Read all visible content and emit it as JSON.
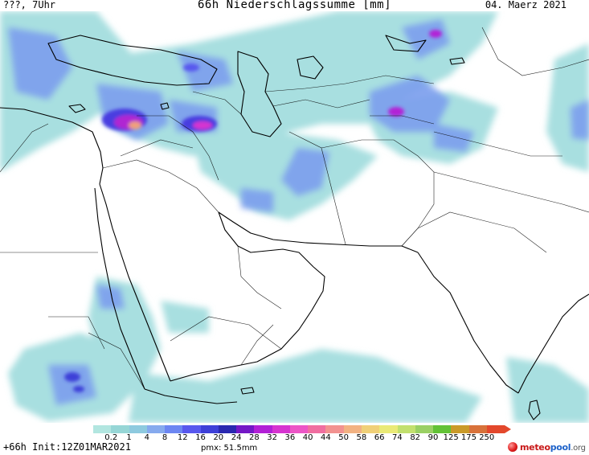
{
  "header": {
    "left": "???, 7Uhr",
    "title": "66h Niederschlagssumme [mm]",
    "date": "04. Maerz 2021"
  },
  "footer": {
    "forecast": "+66h Init:12Z01MAR2021",
    "pmx": "pmx: 51.5mm"
  },
  "logo": {
    "part1": "meteo",
    "part2": "pool",
    "part3": ".org"
  },
  "legend": {
    "ticks": [
      "0.2",
      "1",
      "4",
      "8",
      "12",
      "16",
      "20",
      "24",
      "28",
      "32",
      "36",
      "40",
      "44",
      "50",
      "58",
      "66",
      "74",
      "82",
      "90",
      "125",
      "175",
      "250"
    ],
    "colors": [
      "#b2e6e0",
      "#96d6d6",
      "#8ecadf",
      "#86aaee",
      "#6c86f2",
      "#5858ee",
      "#3e40d8",
      "#2a28b0",
      "#7418c6",
      "#b220d6",
      "#d634d0",
      "#ec56c6",
      "#f06ea0",
      "#f29290",
      "#f2b282",
      "#f0d078",
      "#eaea76",
      "#c2e06e",
      "#9ad064",
      "#62c236",
      "#ca9a28",
      "#d8723a",
      "#e3482c"
    ]
  }
}
